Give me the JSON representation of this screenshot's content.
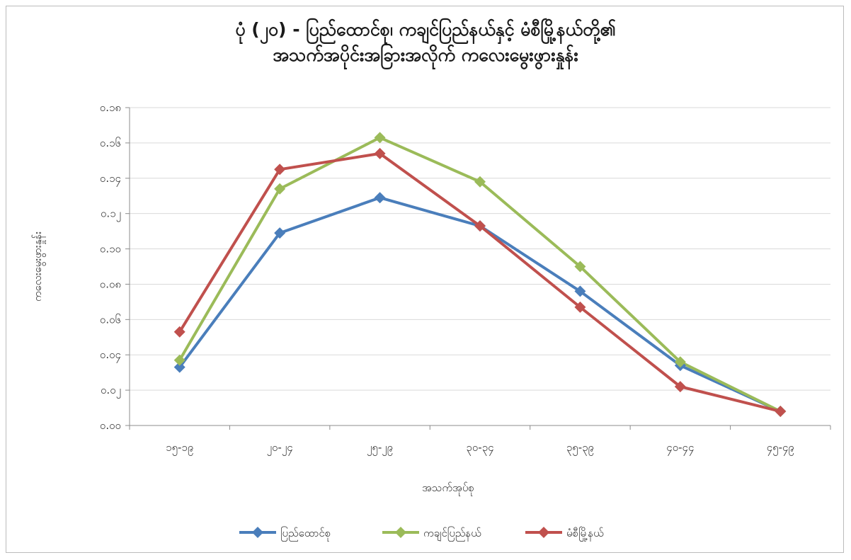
{
  "chart_data": {
    "type": "line",
    "title_line1": "ပုံ (၂၀) - ပြည်ထောင်စု၊ ကချင်ပြည်နယ်နှင့် မံစီမြို့နယ်တို့၏",
    "title_line2": "အသက်အပိုင်းအခြားအလိုက် ကလေးမွေးဖွားနှုန်း",
    "xlabel": "အသက်အုပ်စု",
    "ylabel": "ကလေးမွေးဖွားနှုန်း",
    "categories": [
      "၁၅-၁၉",
      "၂၀-၂၄",
      "၂၅-၂၉",
      "၃၀-၃၄",
      "၃၅-၃၉",
      "၄၀-၄၄",
      "၄၅-၄၉"
    ],
    "y_ticks": [
      {
        "value": 0.0,
        "label": "၀.၀၀"
      },
      {
        "value": 0.02,
        "label": "၀.၀၂"
      },
      {
        "value": 0.04,
        "label": "၀.၀၄"
      },
      {
        "value": 0.06,
        "label": "၀.၀၆"
      },
      {
        "value": 0.08,
        "label": "၀.၀၈"
      },
      {
        "value": 0.1,
        "label": "၀.၁၀"
      },
      {
        "value": 0.12,
        "label": "၀.၁၂"
      },
      {
        "value": 0.14,
        "label": "၀.၁၄"
      },
      {
        "value": 0.16,
        "label": "၀.၁၆"
      },
      {
        "value": 0.18,
        "label": "၀.၁၈"
      }
    ],
    "ylim": [
      0,
      0.18
    ],
    "grid": true,
    "legend_position": "bottom",
    "series": [
      {
        "name": "ပြည်ထောင်စု",
        "color": "#4a7ebb",
        "values": [
          0.033,
          0.109,
          0.129,
          0.113,
          0.076,
          0.034,
          0.008
        ]
      },
      {
        "name": "ကချင်ပြည်နယ်",
        "color": "#9bbb59",
        "values": [
          0.037,
          0.134,
          0.163,
          0.138,
          0.09,
          0.036,
          0.008
        ]
      },
      {
        "name": "မံစီမြို့နယ်",
        "color": "#c0504d",
        "values": [
          0.053,
          0.145,
          0.154,
          0.113,
          0.067,
          0.022,
          0.008
        ]
      }
    ]
  }
}
